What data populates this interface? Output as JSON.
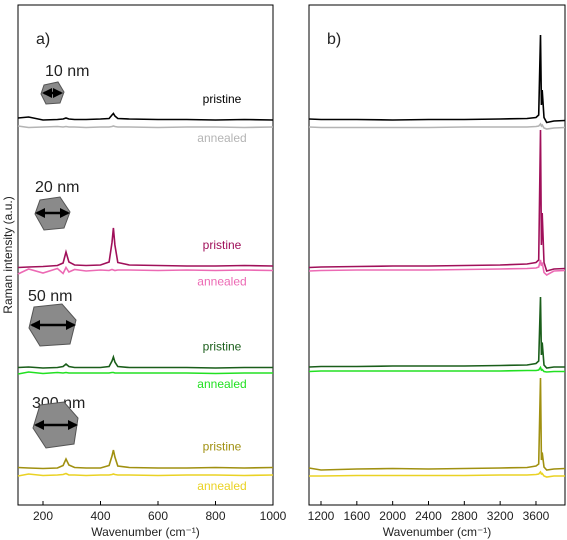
{
  "chart_data": [
    {
      "type": "line",
      "panel_label": "a)",
      "xlabel": "Wavenumber (cm⁻¹)",
      "ylabel": "Raman intensity (a.u.)",
      "size_labels": [
        "10 nm",
        "20 nm",
        "50 nm",
        "300 nm"
      ],
      "xlim": [
        113,
        1000
      ],
      "xticks": [
        200,
        400,
        600,
        800,
        1000
      ],
      "ylim": [
        0,
        100
      ],
      "x": [
        113,
        150,
        200,
        250,
        270,
        280,
        290,
        310,
        350,
        400,
        430,
        440,
        445,
        450,
        460,
        500,
        600,
        700,
        800,
        900,
        1000
      ],
      "series": [
        {
          "name": "pristine",
          "color": "#000000",
          "values": [
            77.4,
            77.6,
            77.0,
            77.1,
            77.2,
            77.4,
            77.2,
            77.1,
            77.1,
            77.2,
            77.3,
            78.0,
            78.3,
            77.8,
            77.3,
            77.2,
            77.1,
            77.1,
            77.0,
            77.1,
            77.0
          ]
        },
        {
          "name": "annealed",
          "color": "#b4b4b4",
          "values": [
            75.8,
            75.5,
            75.6,
            75.7,
            75.6,
            75.7,
            75.6,
            75.6,
            75.5,
            75.6,
            75.6,
            75.7,
            75.8,
            75.7,
            75.6,
            75.6,
            75.5,
            75.6,
            75.6,
            75.5,
            75.6
          ]
        },
        {
          "name": "pristine",
          "color": "#a0105a",
          "values": [
            47.5,
            47.6,
            47.7,
            47.9,
            48.4,
            50.6,
            48.6,
            48.0,
            47.9,
            48.0,
            48.6,
            52.5,
            55.4,
            52.0,
            48.5,
            48.0,
            47.9,
            47.8,
            47.8,
            47.9,
            47.8
          ]
        },
        {
          "name": "annealed",
          "color": "#ec6ab4",
          "values": [
            46.2,
            47.2,
            46.4,
            47.3,
            46.3,
            47.5,
            46.6,
            47.1,
            46.8,
            47.0,
            46.9,
            47.1,
            47.0,
            46.9,
            47.0,
            47.0,
            46.9,
            47.0,
            46.9,
            47.0,
            46.9
          ]
        },
        {
          "name": "pristine",
          "color": "#1a5e1a",
          "values": [
            27.5,
            27.6,
            27.4,
            27.5,
            27.7,
            28.2,
            27.7,
            27.5,
            27.5,
            27.5,
            27.7,
            28.8,
            29.6,
            28.6,
            27.7,
            27.5,
            27.5,
            27.5,
            27.4,
            27.5,
            27.5
          ]
        },
        {
          "name": "annealed",
          "color": "#22e022",
          "values": [
            26.2,
            26.6,
            26.3,
            26.5,
            26.4,
            26.5,
            26.4,
            26.4,
            26.4,
            26.4,
            26.4,
            26.5,
            26.5,
            26.4,
            26.4,
            26.4,
            26.4,
            26.4,
            26.3,
            26.4,
            26.4
          ]
        },
        {
          "name": "pristine",
          "color": "#a09010",
          "values": [
            7.5,
            7.4,
            7.3,
            7.4,
            7.9,
            9.2,
            8.0,
            7.5,
            7.4,
            7.4,
            7.9,
            9.8,
            11.0,
            9.6,
            7.8,
            7.5,
            7.4,
            7.4,
            7.5,
            7.4,
            7.5
          ]
        },
        {
          "name": "annealed",
          "color": "#ead224",
          "values": [
            5.8,
            6.2,
            5.9,
            6.0,
            6.1,
            6.3,
            6.0,
            6.0,
            5.9,
            6.0,
            6.0,
            6.1,
            6.2,
            6.1,
            6.0,
            6.0,
            5.9,
            6.0,
            6.0,
            5.9,
            6.0
          ]
        }
      ]
    },
    {
      "type": "line",
      "panel_label": "b)",
      "xlabel": "Wavenumber (cm⁻¹)",
      "xlim": [
        1066,
        3924
      ],
      "xticks": [
        1200,
        1600,
        2000,
        2400,
        2800,
        3200,
        3600
      ],
      "ylim": [
        0,
        100
      ],
      "x": [
        1066,
        1200,
        1600,
        2000,
        2400,
        2800,
        3200,
        3500,
        3600,
        3630,
        3650,
        3660,
        3670,
        3690,
        3720,
        3800,
        3924
      ],
      "series": [
        {
          "color": "#000000",
          "values": [
            77.2,
            77.1,
            77.1,
            77.0,
            77.1,
            77.1,
            77.2,
            77.3,
            77.5,
            78.0,
            94.0,
            80.0,
            83.0,
            77.5,
            76.5,
            76.8,
            76.9
          ]
        },
        {
          "color": "#b4b4b4",
          "values": [
            75.6,
            75.5,
            75.5,
            75.5,
            75.5,
            75.6,
            75.6,
            75.6,
            75.7,
            75.8,
            76.2,
            75.8,
            76.0,
            75.4,
            75.2,
            75.4,
            75.5
          ]
        },
        {
          "color": "#a0105a",
          "values": [
            47.5,
            47.6,
            47.7,
            47.8,
            47.8,
            47.9,
            48.0,
            48.2,
            48.5,
            49.0,
            75.0,
            52.0,
            58.4,
            48.5,
            46.8,
            47.2,
            47.3
          ]
        },
        {
          "color": "#ec6ab4",
          "values": [
            46.8,
            46.9,
            47.0,
            47.0,
            47.0,
            47.1,
            47.2,
            47.3,
            47.4,
            47.6,
            49.0,
            47.8,
            48.5,
            46.5,
            46.0,
            46.8,
            46.9
          ]
        },
        {
          "color": "#1a5e1a",
          "values": [
            27.6,
            27.7,
            27.7,
            27.8,
            27.8,
            27.8,
            27.9,
            28.0,
            28.3,
            28.8,
            41.6,
            30.0,
            32.5,
            28.0,
            27.4,
            27.6,
            27.6
          ]
        },
        {
          "color": "#22e022",
          "values": [
            26.7,
            26.8,
            26.8,
            26.8,
            26.8,
            26.8,
            26.8,
            26.9,
            26.9,
            27.0,
            27.5,
            27.0,
            27.1,
            26.7,
            26.6,
            26.7,
            26.7
          ]
        },
        {
          "color": "#a09010",
          "values": [
            7.4,
            7.0,
            7.2,
            7.3,
            7.2,
            7.3,
            7.4,
            7.5,
            7.8,
            8.2,
            25.4,
            9.0,
            10.5,
            7.6,
            7.0,
            7.2,
            7.3
          ]
        },
        {
          "color": "#ead224",
          "values": [
            5.8,
            5.8,
            5.9,
            5.9,
            5.9,
            5.9,
            6.0,
            6.0,
            6.1,
            6.2,
            6.6,
            6.2,
            6.3,
            5.8,
            5.6,
            5.8,
            5.8
          ]
        }
      ]
    }
  ]
}
